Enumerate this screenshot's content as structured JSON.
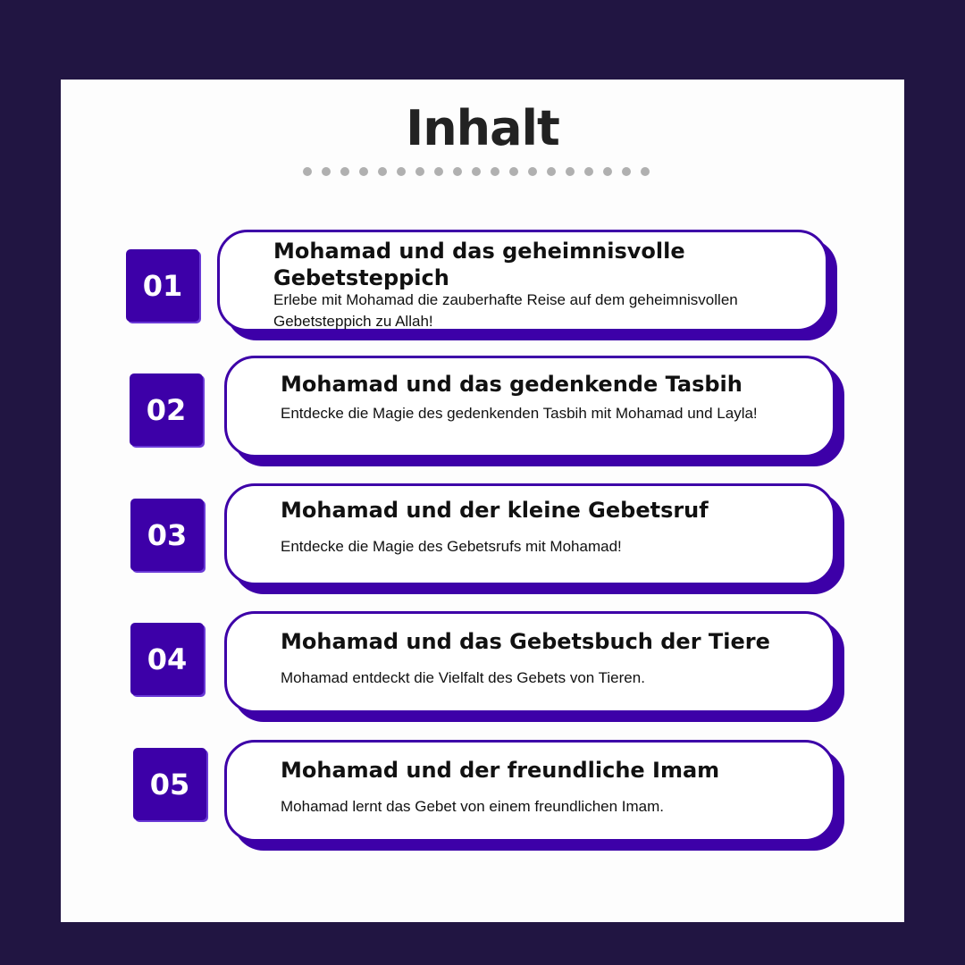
{
  "title": "Inhalt",
  "colors": {
    "background": "#211542",
    "accent": "#3d00a8",
    "dots": "#b0b0b0"
  },
  "items": [
    {
      "number": "01",
      "title": "Mohamad und das geheimnisvolle Gebetsteppich",
      "description": "Erlebe mit Mohamad die zauberhafte Reise auf dem geheimnisvollen Gebetsteppich zu Allah!"
    },
    {
      "number": "02",
      "title": "Mohamad und das gedenkende Tasbih",
      "description": "Entdecke die Magie des gedenkenden Tasbih mit Mohamad und Layla!"
    },
    {
      "number": "03",
      "title": "Mohamad und der kleine Gebetsruf",
      "description": "Entdecke die Magie des Gebetsrufs mit Mohamad!"
    },
    {
      "number": "04",
      "title": "Mohamad und das Gebetsbuch der Tiere",
      "description": "Mohamad entdeckt die Vielfalt des Gebets von Tieren."
    },
    {
      "number": "05",
      "title": "Mohamad und der freundliche Imam",
      "description": "Mohamad lernt das Gebet von einem freundlichen Imam."
    }
  ]
}
